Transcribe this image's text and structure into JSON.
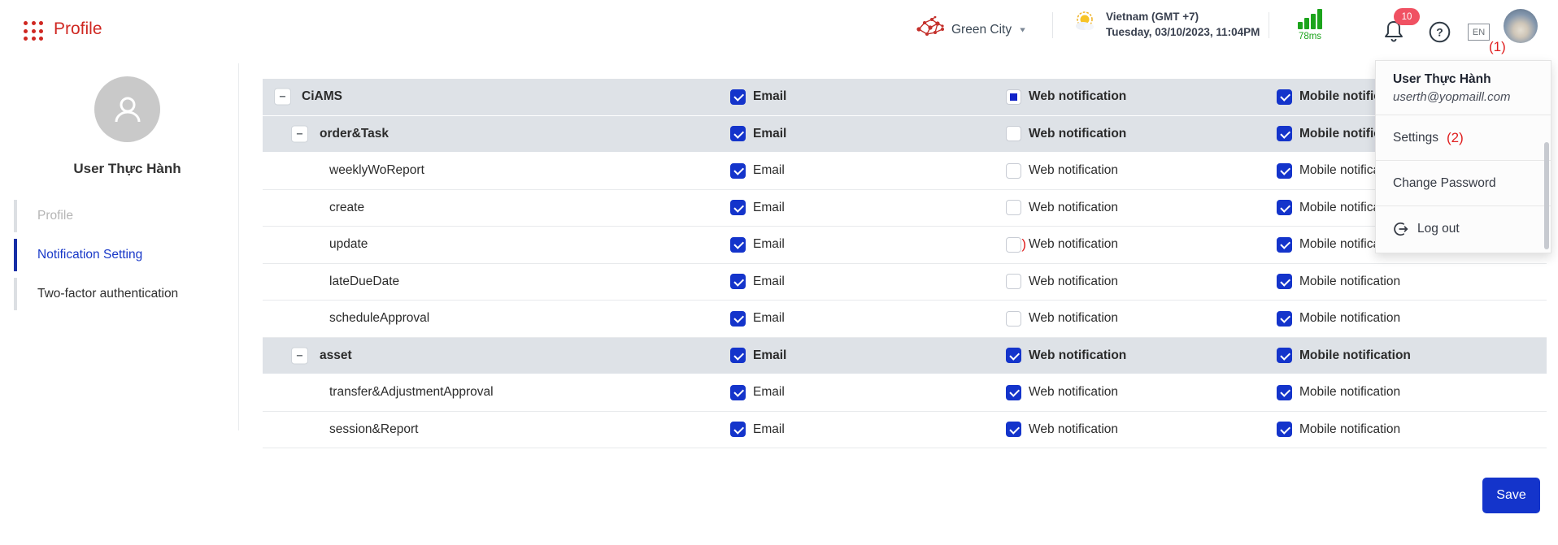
{
  "header": {
    "app_title": "Profile",
    "site": {
      "label": "Green City"
    },
    "locale": {
      "region": "Vietnam (GMT +7)",
      "datetime": "Tuesday, 03/10/2023, 11:04PM"
    },
    "latency": {
      "value": "78ms"
    },
    "notifications": {
      "count": "10"
    },
    "language": "EN"
  },
  "annotations": {
    "one": "(1)",
    "two": "(2)",
    "three": "(3)"
  },
  "user_menu": {
    "name": "User Thực Hành",
    "email": "userth@yopmaill.com",
    "items": [
      "Settings",
      "Change Password",
      "Log out"
    ]
  },
  "sidebar": {
    "user_name": "User Thực Hành",
    "items": [
      {
        "label": "Profile",
        "state": "muted"
      },
      {
        "label": "Notification Setting",
        "state": "active"
      },
      {
        "label": "Two-factor authentication",
        "state": "normal"
      }
    ]
  },
  "table": {
    "columns": [
      "Email",
      "Web notification",
      "Mobile notification"
    ],
    "rows": [
      {
        "label": "CiAMS",
        "level": 0,
        "group": true,
        "email": "checked",
        "web": "indeterminate",
        "mobile": "checked"
      },
      {
        "label": "order&Task",
        "level": 1,
        "group": true,
        "email": "checked",
        "web": "unchecked",
        "mobile": "checked"
      },
      {
        "label": "weeklyWoReport",
        "level": 2,
        "group": false,
        "email": "checked",
        "web": "unchecked",
        "mobile": "checked"
      },
      {
        "label": "create",
        "level": 2,
        "group": false,
        "email": "checked",
        "web": "unchecked",
        "mobile": "checked"
      },
      {
        "label": "update",
        "level": 2,
        "group": false,
        "email": "checked",
        "web": "unchecked",
        "mobile": "checked",
        "annotation": "(3)"
      },
      {
        "label": "lateDueDate",
        "level": 2,
        "group": false,
        "email": "checked",
        "web": "unchecked",
        "mobile": "checked"
      },
      {
        "label": "scheduleApproval",
        "level": 2,
        "group": false,
        "email": "checked",
        "web": "unchecked",
        "mobile": "checked"
      },
      {
        "label": "asset",
        "level": 1,
        "group": true,
        "email": "checked",
        "web": "checked",
        "mobile": "checked"
      },
      {
        "label": "transfer&AdjustmentApproval",
        "level": 2,
        "group": false,
        "email": "checked",
        "web": "checked",
        "mobile": "checked"
      },
      {
        "label": "session&Report",
        "level": 2,
        "group": false,
        "email": "checked",
        "web": "checked",
        "mobile": "checked"
      }
    ]
  },
  "actions": {
    "save": "Save"
  },
  "colors": {
    "accent_red": "#cf2721",
    "annotation_red": "#e01f1f",
    "checkbox_blue": "#1434cb",
    "nav_active_blue": "#1838c8",
    "group_row_gray": "#dee2e7",
    "latency_green": "#1ca41c",
    "badge_red": "#f05162"
  }
}
